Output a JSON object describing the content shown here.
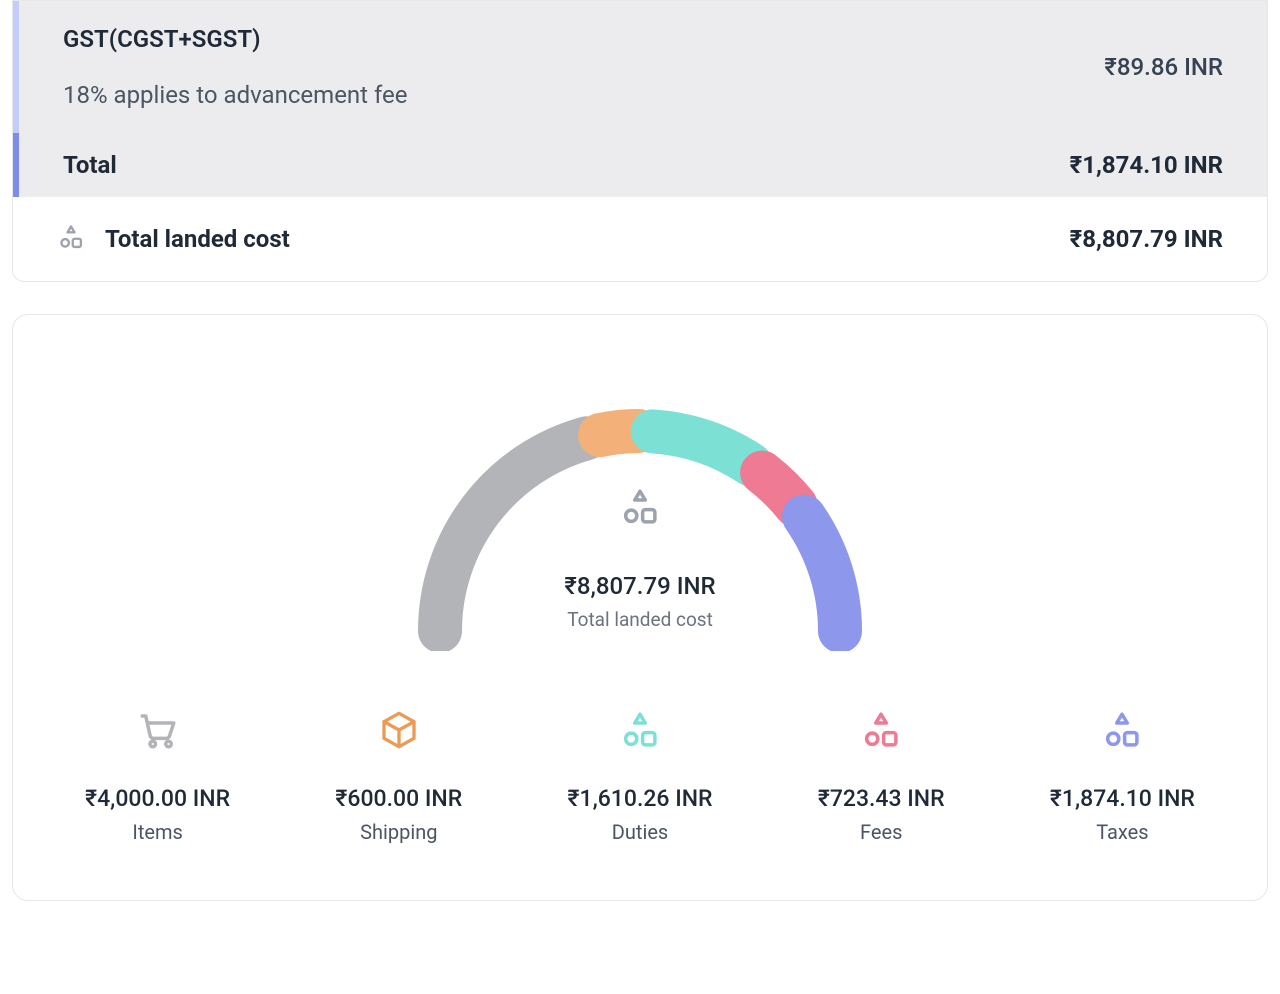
{
  "colors": {
    "accent_light": "#c2cdfb",
    "accent": "#7d8dea",
    "grey_bg": "#ececee",
    "border": "#e5e7eb",
    "text": "#1f2937",
    "text_muted": "#4b5563",
    "text_muted2": "#6b7280",
    "segments": {
      "items": "#b3b4b8",
      "shipping": "#f3b079",
      "duties": "#7de0d4",
      "fees": "#ef7a94",
      "taxes": "#8d97ec"
    },
    "breakdown_icons": {
      "items": "#b3b4b8",
      "shipping": "#eb9b58",
      "duties": "#7de0d4",
      "fees": "#ef7a94",
      "taxes": "#8d97ec"
    }
  },
  "summary": {
    "gst": {
      "title": "GST(CGST+SGST)",
      "note": "18% applies to advancement fee",
      "amount": "₹89.86 INR"
    },
    "total": {
      "label": "Total",
      "amount": "₹1,874.10 INR"
    },
    "landed": {
      "label": "Total landed cost",
      "amount": "₹8,807.79 INR"
    }
  },
  "chart": {
    "type": "gauge",
    "center_value": "₹8,807.79 INR",
    "center_label": "Total landed cost",
    "arc": {
      "start_deg": 180,
      "end_deg": 0,
      "gap_deg": 4,
      "stroke_width": 44,
      "radius": 200
    },
    "segments": [
      {
        "key": "items",
        "value": 4000.0,
        "color": "#b3b4b8"
      },
      {
        "key": "shipping",
        "value": 600.0,
        "color": "#f3b079"
      },
      {
        "key": "duties",
        "value": 1610.26,
        "color": "#7de0d4"
      },
      {
        "key": "fees",
        "value": 723.43,
        "color": "#ef7a94"
      },
      {
        "key": "taxes",
        "value": 1874.1,
        "color": "#8d97ec"
      }
    ]
  },
  "breakdown": [
    {
      "key": "items",
      "icon": "cart",
      "amount": "₹4,000.00 INR",
      "label": "Items"
    },
    {
      "key": "shipping",
      "icon": "box",
      "amount": "₹600.00 INR",
      "label": "Shipping"
    },
    {
      "key": "duties",
      "icon": "shapes",
      "amount": "₹1,610.26 INR",
      "label": "Duties"
    },
    {
      "key": "fees",
      "icon": "shapes",
      "amount": "₹723.43 INR",
      "label": "Fees"
    },
    {
      "key": "taxes",
      "icon": "shapes",
      "amount": "₹1,874.10 INR",
      "label": "Taxes"
    }
  ]
}
